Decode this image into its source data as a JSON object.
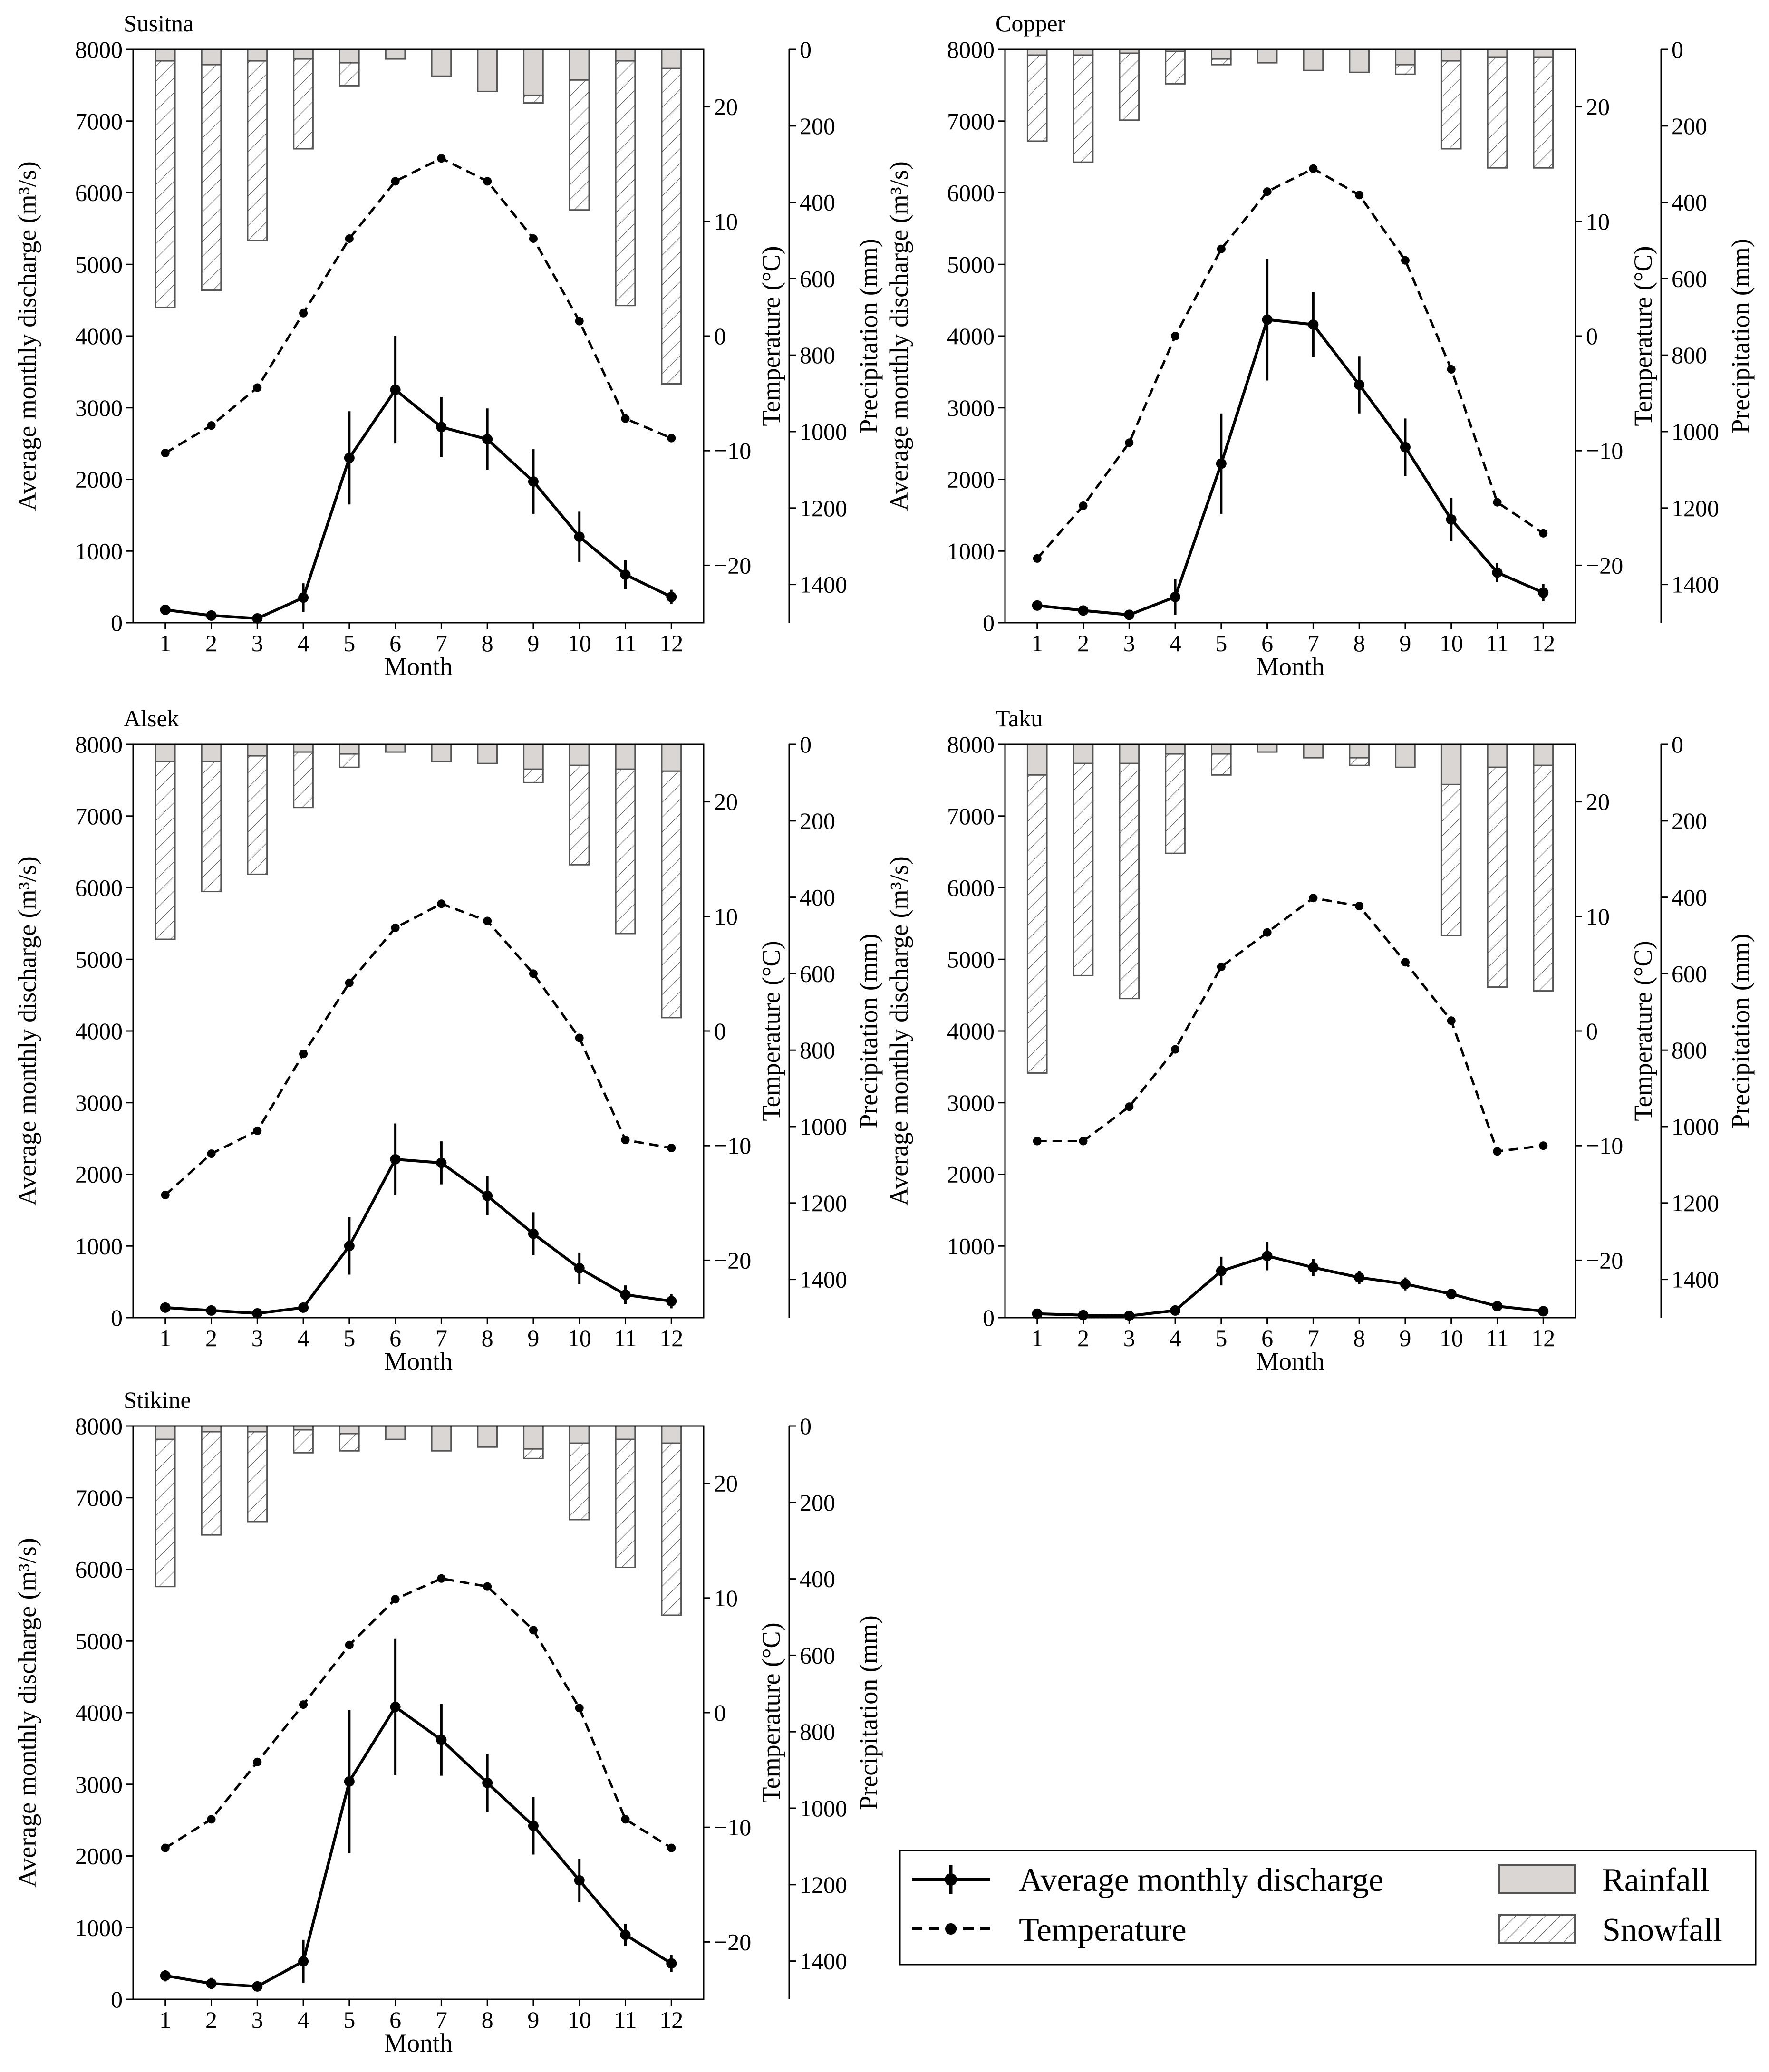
{
  "chart_data": [
    {
      "type": "bar+line",
      "title": "Susitna",
      "xlabel": "Month",
      "ylabel_left": "Average monthly discharge (m³/s)",
      "ylabel_temp": "Temperature (°C)",
      "ylabel_precip": "Precipitation (mm)",
      "categories": [
        "1",
        "2",
        "3",
        "4",
        "5",
        "6",
        "7",
        "8",
        "9",
        "10",
        "11",
        "12"
      ],
      "discharge_ylim": [
        0,
        8000
      ],
      "temperature_ylim": [
        -25,
        25
      ],
      "precipitation_ylim_inverted": [
        0,
        1500
      ],
      "discharge_ticks": [
        "0",
        "1000",
        "2000",
        "3000",
        "4000",
        "5000",
        "6000",
        "7000",
        "8000"
      ],
      "temperature_ticks": [
        "20",
        "10",
        "0",
        "−10",
        "−20"
      ],
      "precipitation_ticks": [
        "0",
        "200",
        "400",
        "600",
        "800",
        "1000",
        "1200",
        "1400"
      ],
      "series": [
        {
          "name": "Average monthly discharge",
          "values": [
            180,
            100,
            60,
            350,
            2300,
            3250,
            2730,
            2560,
            1970,
            1200,
            670,
            360
          ],
          "error": [
            40,
            30,
            20,
            200,
            650,
            750,
            420,
            430,
            450,
            350,
            200,
            100
          ]
        },
        {
          "name": "Temperature",
          "values": [
            -10.2,
            -7.8,
            -4.5,
            2.0,
            8.5,
            13.5,
            15.5,
            13.5,
            8.5,
            1.3,
            -7.2,
            -8.9
          ]
        },
        {
          "name": "Rainfall",
          "values": [
            30,
            40,
            30,
            25,
            35,
            25,
            70,
            110,
            120,
            80,
            30,
            50
          ]
        },
        {
          "name": "Snowfall",
          "values": [
            645,
            590,
            470,
            235,
            60,
            0,
            0,
            0,
            20,
            340,
            640,
            825
          ]
        }
      ]
    },
    {
      "type": "bar+line",
      "title": "Copper",
      "xlabel": "Month",
      "ylabel_left": "Average monthly discharge (m³/s)",
      "ylabel_temp": "Temperature (°C)",
      "ylabel_precip": "Precipitation (mm)",
      "categories": [
        "1",
        "2",
        "3",
        "4",
        "5",
        "6",
        "7",
        "8",
        "9",
        "10",
        "11",
        "12"
      ],
      "discharge_ylim": [
        0,
        8000
      ],
      "temperature_ylim": [
        -25,
        25
      ],
      "precipitation_ylim_inverted": [
        0,
        1500
      ],
      "discharge_ticks": [
        "0",
        "1000",
        "2000",
        "3000",
        "4000",
        "5000",
        "6000",
        "7000",
        "8000"
      ],
      "temperature_ticks": [
        "20",
        "10",
        "0",
        "−10",
        "−20"
      ],
      "precipitation_ticks": [
        "0",
        "200",
        "400",
        "600",
        "800",
        "1000",
        "1200",
        "1400"
      ],
      "series": [
        {
          "name": "Average monthly discharge",
          "values": [
            240,
            170,
            110,
            360,
            2220,
            4230,
            4160,
            3320,
            2450,
            1440,
            700,
            420
          ],
          "error": [
            60,
            40,
            30,
            250,
            700,
            850,
            450,
            400,
            400,
            300,
            130,
            120
          ]
        },
        {
          "name": "Temperature",
          "values": [
            -19.4,
            -14.8,
            -9.3,
            0.0,
            7.6,
            12.6,
            14.6,
            12.3,
            6.6,
            -2.9,
            -14.5,
            -17.2
          ]
        },
        {
          "name": "Rainfall",
          "values": [
            15,
            15,
            10,
            5,
            25,
            35,
            55,
            60,
            40,
            30,
            20,
            20
          ]
        },
        {
          "name": "Snowfall",
          "values": [
            225,
            280,
            175,
            85,
            15,
            0,
            0,
            0,
            25,
            230,
            290,
            290
          ]
        }
      ]
    },
    {
      "type": "bar+line",
      "title": "Alsek",
      "xlabel": "Month",
      "ylabel_left": "Average monthly discharge (m³/s)",
      "ylabel_temp": "Temperature (°C)",
      "ylabel_precip": "Precipitation (mm)",
      "categories": [
        "1",
        "2",
        "3",
        "4",
        "5",
        "6",
        "7",
        "8",
        "9",
        "10",
        "11",
        "12"
      ],
      "discharge_ylim": [
        0,
        8000
      ],
      "temperature_ylim": [
        -25,
        25
      ],
      "precipitation_ylim_inverted": [
        0,
        1500
      ],
      "discharge_ticks": [
        "0",
        "1000",
        "2000",
        "3000",
        "4000",
        "5000",
        "6000",
        "7000",
        "8000"
      ],
      "temperature_ticks": [
        "20",
        "10",
        "0",
        "−10",
        "−20"
      ],
      "precipitation_ticks": [
        "0",
        "200",
        "400",
        "600",
        "800",
        "1000",
        "1200",
        "1400"
      ],
      "series": [
        {
          "name": "Average monthly discharge",
          "values": [
            140,
            100,
            60,
            140,
            1000,
            2210,
            2160,
            1700,
            1170,
            690,
            320,
            230
          ],
          "error": [
            30,
            30,
            20,
            50,
            400,
            500,
            300,
            270,
            300,
            220,
            130,
            100
          ]
        },
        {
          "name": "Temperature",
          "values": [
            -14.3,
            -10.7,
            -8.7,
            -2.0,
            4.2,
            9.0,
            11.1,
            9.6,
            5.0,
            -0.6,
            -9.5,
            -10.2
          ]
        },
        {
          "name": "Rainfall",
          "values": [
            45,
            45,
            30,
            20,
            25,
            20,
            45,
            50,
            65,
            55,
            65,
            70
          ]
        },
        {
          "name": "Snowfall",
          "values": [
            465,
            340,
            310,
            145,
            35,
            0,
            0,
            0,
            35,
            260,
            430,
            645
          ]
        }
      ]
    },
    {
      "type": "bar+line",
      "title": "Taku",
      "xlabel": "Month",
      "ylabel_left": "Average monthly discharge (m³/s)",
      "ylabel_temp": "Temperature (°C)",
      "ylabel_precip": "Precipitation (mm)",
      "categories": [
        "1",
        "2",
        "3",
        "4",
        "5",
        "6",
        "7",
        "8",
        "9",
        "10",
        "11",
        "12"
      ],
      "discharge_ylim": [
        0,
        8000
      ],
      "temperature_ylim": [
        -25,
        25
      ],
      "precipitation_ylim_inverted": [
        0,
        1500
      ],
      "discharge_ticks": [
        "0",
        "1000",
        "2000",
        "3000",
        "4000",
        "5000",
        "6000",
        "7000",
        "8000"
      ],
      "temperature_ticks": [
        "20",
        "10",
        "0",
        "−10",
        "−20"
      ],
      "precipitation_ticks": [
        "0",
        "200",
        "400",
        "600",
        "800",
        "1000",
        "1200",
        "1400"
      ],
      "series": [
        {
          "name": "Average monthly discharge",
          "values": [
            55,
            35,
            25,
            100,
            650,
            860,
            700,
            560,
            470,
            330,
            160,
            90
          ],
          "error": [
            15,
            10,
            10,
            30,
            200,
            200,
            120,
            90,
            90,
            70,
            40,
            30
          ]
        },
        {
          "name": "Temperature",
          "values": [
            -9.6,
            -9.6,
            -6.6,
            -1.6,
            5.6,
            8.6,
            11.6,
            10.9,
            6.0,
            0.9,
            -10.5,
            -10.0
          ]
        },
        {
          "name": "Rainfall",
          "values": [
            80,
            50,
            50,
            25,
            25,
            20,
            35,
            35,
            60,
            105,
            60,
            55
          ]
        },
        {
          "name": "Snowfall",
          "values": [
            780,
            555,
            615,
            260,
            55,
            0,
            0,
            20,
            0,
            395,
            575,
            590
          ]
        }
      ]
    },
    {
      "type": "bar+line",
      "title": "Stikine",
      "xlabel": "Month",
      "ylabel_left": "Average monthly discharge (m³/s)",
      "ylabel_temp": "Temperature (°C)",
      "ylabel_precip": "Precipitation (mm)",
      "categories": [
        "1",
        "2",
        "3",
        "4",
        "5",
        "6",
        "7",
        "8",
        "9",
        "10",
        "11",
        "12"
      ],
      "discharge_ylim": [
        0,
        8000
      ],
      "temperature_ylim": [
        -25,
        25
      ],
      "precipitation_ylim_inverted": [
        0,
        1500
      ],
      "discharge_ticks": [
        "0",
        "1000",
        "2000",
        "3000",
        "4000",
        "5000",
        "6000",
        "7000",
        "8000"
      ],
      "temperature_ticks": [
        "20",
        "10",
        "0",
        "−10",
        "−20"
      ],
      "precipitation_ticks": [
        "0",
        "200",
        "400",
        "600",
        "800",
        "1000",
        "1200",
        "1400"
      ],
      "series": [
        {
          "name": "Average monthly discharge",
          "values": [
            330,
            220,
            180,
            530,
            3040,
            4080,
            3620,
            3020,
            2420,
            1660,
            900,
            500
          ],
          "error": [
            80,
            80,
            40,
            300,
            1000,
            950,
            500,
            400,
            400,
            300,
            150,
            120
          ]
        },
        {
          "name": "Temperature",
          "values": [
            -11.8,
            -9.3,
            -4.3,
            0.7,
            5.9,
            9.9,
            11.7,
            11.0,
            7.2,
            0.4,
            -9.3,
            -11.8
          ]
        },
        {
          "name": "Rainfall",
          "values": [
            35,
            15,
            15,
            10,
            20,
            35,
            65,
            55,
            60,
            45,
            35,
            45
          ]
        },
        {
          "name": "Snowfall",
          "values": [
            385,
            270,
            235,
            60,
            45,
            0,
            0,
            0,
            25,
            200,
            335,
            450
          ]
        }
      ]
    }
  ],
  "legend": {
    "discharge": "Average monthly discharge",
    "temperature": "Temperature",
    "rainfall": "Rainfall",
    "snowfall": "Snowfall"
  },
  "colors": {
    "rainfall_fill": "#d9d6d4",
    "bar_edge": "#555555",
    "line": "#000000"
  }
}
